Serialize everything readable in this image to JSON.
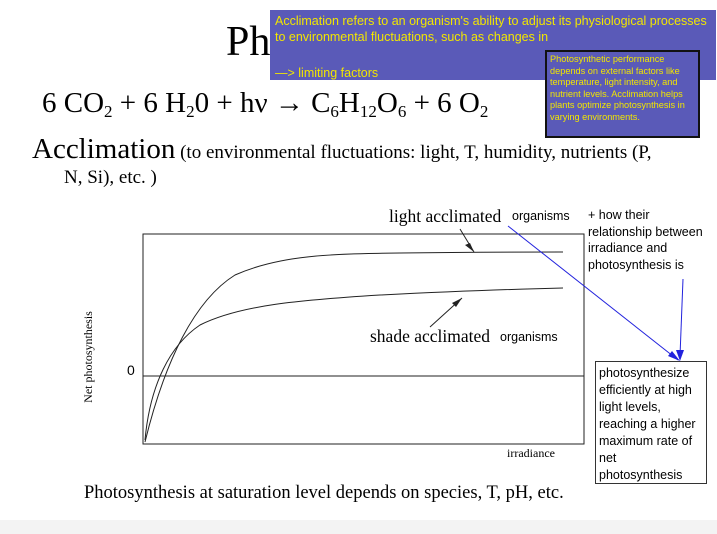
{
  "slide": {
    "title": "Ph",
    "equation": {
      "left": "6 CO",
      "sub1": "2",
      "mid1": " + 6 H",
      "sub2": "2",
      "mid2": "0 + hν → C",
      "sub3": "6",
      "mid3": "H",
      "sub4": "12",
      "mid4": "O",
      "sub5": "6",
      "mid5": " + 6 O",
      "sub6": "2"
    },
    "acclimation_heading": "Acclimation",
    "acclimation_subtext": " (to environmental fluctuations: light, T, humidity, nutrients (P,",
    "acclimation_line2": "N, Si), etc. )",
    "footer": "Photosynthesis at saturation level depends on species, T, pH, etc."
  },
  "notes": {
    "main_text": "Acclimation refers to an organism's ability to adjust its physiological processes to environmental fluctuations, such as changes in",
    "main_link": "—> limiting factors",
    "side_text": "Photosynthetic performance depends on external factors like temperature, light intensity, and nutrient levels. Acclimation helps plants optimize photosynthesis in varying environments.",
    "colors": {
      "background": "#5a5ab8",
      "text": "#f2e600",
      "arrow": "#2222dd"
    }
  },
  "chart": {
    "light_acclimated_label": "light acclimated",
    "light_acclimated_suffix": "organisms",
    "shade_acclimated_label": "shade acclimated",
    "shade_acclimated_suffix": "organisms",
    "relationship_note": "+ how their relationship between irradiance and photosynthesis is",
    "answer_box": "photosynthesize efficiently at high light levels, reaching a higher maximum rate of net photosynthesis",
    "zero_label": "0",
    "y_axis_label": "Net photosynthesis",
    "x_axis_label": "irradiance"
  }
}
